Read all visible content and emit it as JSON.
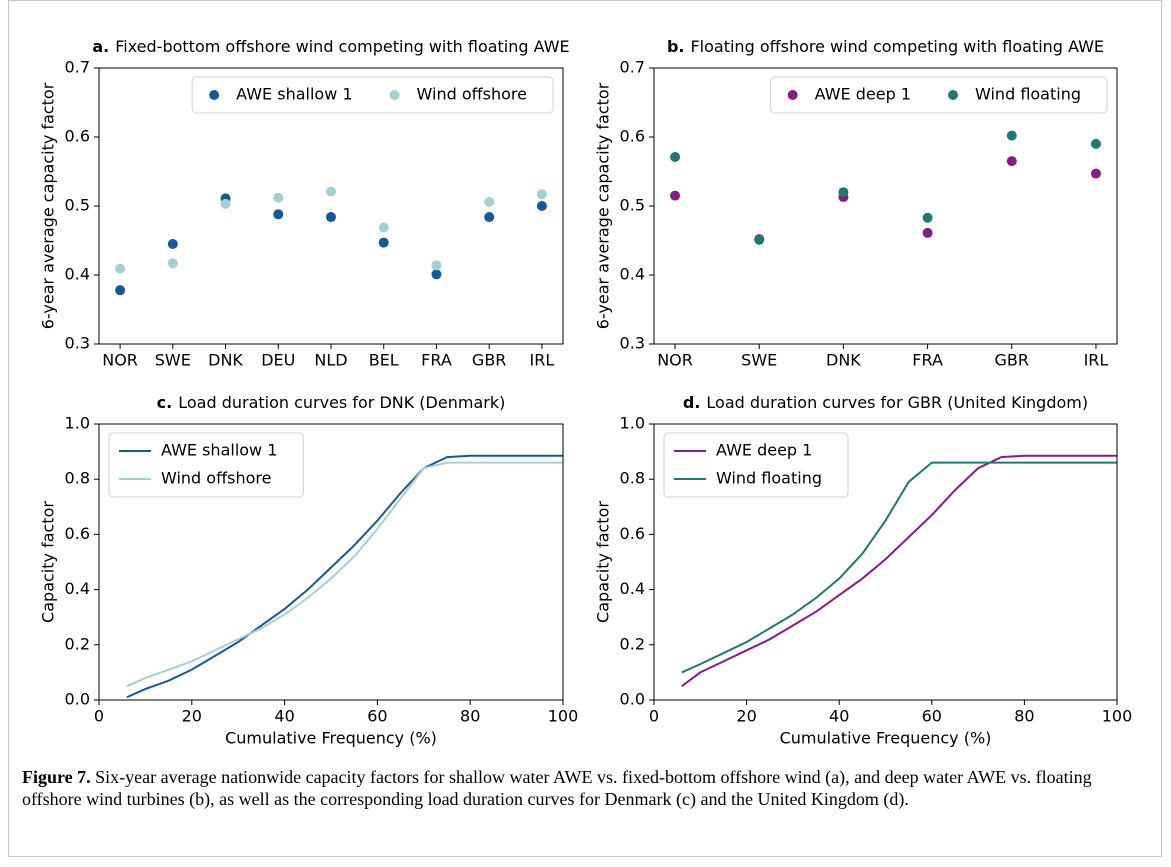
{
  "chart_data": [
    {
      "type": "scatter",
      "panel": "a.",
      "title": "Fixed-bottom offshore wind competing with floating AWE",
      "ylabel": "6-year average capacity factor",
      "categories": [
        "NOR",
        "SWE",
        "DNK",
        "DEU",
        "NLD",
        "BEL",
        "FRA",
        "GBR",
        "IRL"
      ],
      "series": [
        {
          "name": "AWE shallow 1",
          "color": "#17589b",
          "values": [
            0.378,
            0.445,
            0.511,
            0.488,
            0.484,
            0.447,
            0.401,
            0.484,
            0.5
          ]
        },
        {
          "name": "Wind offshore",
          "color": "#a3d0d0",
          "values": [
            0.409,
            0.417,
            0.503,
            0.512,
            0.521,
            0.469,
            0.414,
            0.506,
            0.517
          ]
        }
      ],
      "ylim": [
        0.3,
        0.7
      ],
      "yticks": [
        0.3,
        0.4,
        0.5,
        0.6,
        0.7
      ],
      "legend": "upper right",
      "legend_columns": 2
    },
    {
      "type": "scatter",
      "panel": "b.",
      "title": "Floating offshore wind competing with floating AWE",
      "ylabel": "6-year average capacity factor",
      "categories": [
        "NOR",
        "SWE",
        "DNK",
        "FRA",
        "GBR",
        "IRL"
      ],
      "series": [
        {
          "name": "AWE deep 1",
          "color": "#8b1a89",
          "values": [
            0.515,
            0.452,
            0.513,
            0.461,
            0.565,
            0.547
          ]
        },
        {
          "name": "Wind floating",
          "color": "#1d7a70",
          "values": [
            0.571,
            0.451,
            0.52,
            0.483,
            0.602,
            0.59
          ]
        }
      ],
      "ylim": [
        0.3,
        0.7
      ],
      "yticks": [
        0.3,
        0.4,
        0.5,
        0.6,
        0.7
      ],
      "legend": "upper right",
      "legend_columns": 2
    },
    {
      "type": "line",
      "panel": "c.",
      "title": "Load duration curves for DNK (Denmark)",
      "xlabel": "Cumulative Frequency (%)",
      "ylabel": "Capacity factor",
      "x": [
        6,
        10,
        15,
        20,
        25,
        30,
        35,
        40,
        45,
        50,
        55,
        60,
        65,
        70,
        75,
        80,
        90,
        100
      ],
      "series": [
        {
          "name": "AWE shallow 1",
          "color": "#17589b",
          "values": [
            0.01,
            0.04,
            0.07,
            0.11,
            0.16,
            0.21,
            0.27,
            0.33,
            0.4,
            0.48,
            0.56,
            0.65,
            0.75,
            0.84,
            0.88,
            0.885,
            0.885,
            0.885
          ]
        },
        {
          "name": "Wind offshore",
          "color": "#a3d0d0",
          "values": [
            0.05,
            0.08,
            0.11,
            0.14,
            0.18,
            0.22,
            0.26,
            0.31,
            0.37,
            0.44,
            0.52,
            0.62,
            0.73,
            0.84,
            0.86,
            0.86,
            0.86,
            0.86
          ]
        }
      ],
      "xlim": [
        0,
        100
      ],
      "xticks": [
        0,
        20,
        40,
        60,
        80,
        100
      ],
      "ylim": [
        0,
        1
      ],
      "yticks": [
        {
          "value": 0,
          "label": "0.0"
        },
        0.2,
        0.4,
        0.6,
        0.8,
        {
          "value": 1,
          "label": "1.0"
        }
      ],
      "legend": "upper left",
      "legend_columns": 1
    },
    {
      "type": "line",
      "panel": "d.",
      "title": "Load duration curves for GBR (United Kingdom)",
      "xlabel": "Cumulative Frequency (%)",
      "ylabel": "Capacity factor",
      "x": [
        6,
        10,
        15,
        20,
        25,
        30,
        35,
        40,
        45,
        50,
        55,
        60,
        65,
        70,
        75,
        80,
        90,
        100
      ],
      "series": [
        {
          "name": "AWE deep 1",
          "color": "#8b1a89",
          "values": [
            0.05,
            0.1,
            0.14,
            0.18,
            0.22,
            0.27,
            0.32,
            0.38,
            0.44,
            0.51,
            0.59,
            0.67,
            0.76,
            0.84,
            0.88,
            0.885,
            0.885,
            0.885
          ]
        },
        {
          "name": "Wind floating",
          "color": "#1d7a70",
          "values": [
            0.1,
            0.13,
            0.17,
            0.21,
            0.26,
            0.31,
            0.37,
            0.44,
            0.53,
            0.65,
            0.79,
            0.86,
            0.86,
            0.86,
            0.86,
            0.86,
            0.86,
            0.86
          ]
        }
      ],
      "xlim": [
        0,
        100
      ],
      "xticks": [
        0,
        20,
        40,
        60,
        80,
        100
      ],
      "ylim": [
        0,
        1
      ],
      "yticks": [
        {
          "value": 0,
          "label": "0.0"
        },
        0.2,
        0.4,
        0.6,
        0.8,
        {
          "value": 1,
          "label": "1.0"
        }
      ],
      "legend": "upper left",
      "legend_columns": 1
    }
  ],
  "caption": {
    "label": "Figure 7.",
    "text": "Six-year average nationwide capacity factors for shallow water AWE vs. fixed-bottom offshore wind (a), and deep water AWE vs. floating offshore wind turbines (b), as well as the corresponding load duration curves for Denmark (c) and the United Kingdom (d)."
  }
}
